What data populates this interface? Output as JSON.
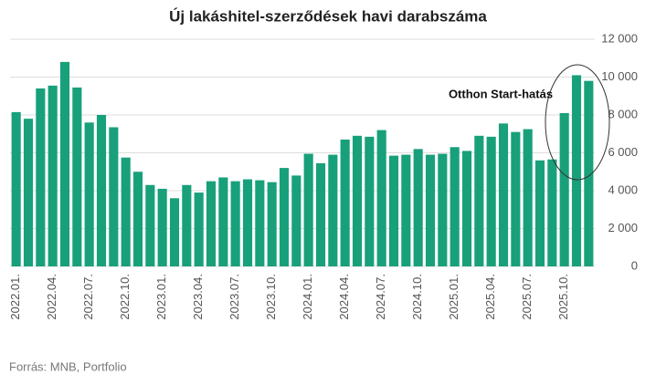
{
  "chart_data": {
    "type": "bar",
    "title": "Új lakáshitel-szerződések havi darabszáma",
    "categories": [
      "2022.01.",
      null,
      null,
      "2022.04.",
      null,
      null,
      "2022.07.",
      null,
      null,
      "2022.10.",
      null,
      null,
      "2023.01.",
      null,
      null,
      "2023.04.",
      null,
      null,
      "2023.07.",
      null,
      null,
      "2023.10.",
      null,
      null,
      "2024.01.",
      null,
      null,
      "2024.04.",
      null,
      null,
      "2024.07.",
      null,
      null,
      "2024.10.",
      null,
      null,
      "2025.01.",
      null,
      null,
      "2025.04.",
      null,
      null,
      "2025.07.",
      null,
      null,
      "2025.10.",
      null,
      null
    ],
    "values": [
      8150,
      7800,
      9400,
      9550,
      10800,
      9450,
      7600,
      8000,
      7350,
      5750,
      5000,
      4300,
      4100,
      3600,
      4300,
      3900,
      4500,
      4700,
      4500,
      4600,
      4550,
      4450,
      5200,
      4800,
      5950,
      5450,
      5900,
      6700,
      6900,
      6850,
      7200,
      5850,
      5900,
      6200,
      5900,
      5950,
      6300,
      6100,
      6900,
      6850,
      7550,
      7100,
      7250,
      5600,
      5650,
      8100,
      10100,
      9800
    ],
    "color": "#18a07b",
    "ylim": [
      0,
      12000
    ],
    "yticks": [
      0,
      {
        "value": 2000,
        "label": "2 000"
      },
      {
        "value": 4000,
        "label": "4 000"
      },
      {
        "value": 6000,
        "label": "6 000"
      },
      {
        "value": 8000,
        "label": "8 000"
      },
      {
        "value": 10000,
        "label": "10 000"
      },
      {
        "value": 12000,
        "label": "12 000"
      }
    ],
    "grid": true,
    "annotation": "Otthon Start-hatás",
    "source": "Forrás: MNB, Portfolio"
  }
}
